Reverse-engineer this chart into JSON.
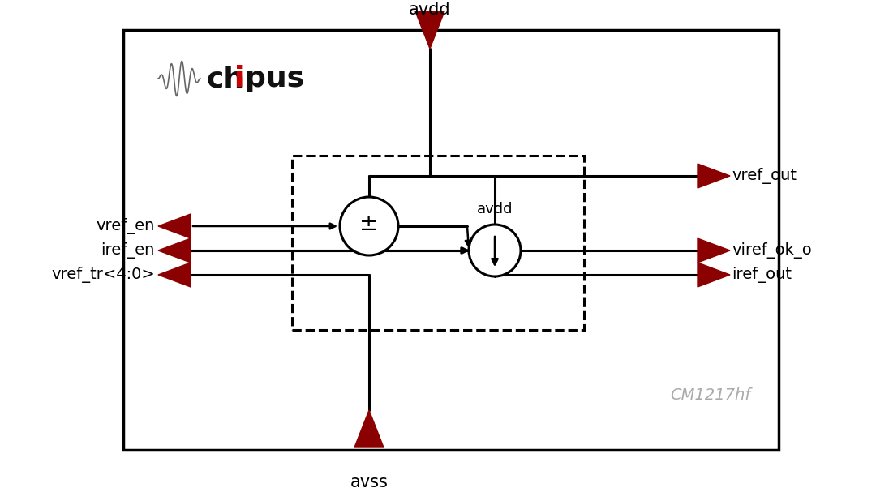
{
  "bg_color": "#ffffff",
  "border_color": "#000000",
  "dark_red": "#8B0000",
  "model_id": "CM1217hf",
  "label_avdd_top": "avdd",
  "label_avss_bot": "avss",
  "label_avdd_inner": "avdd",
  "label_vref_out": "vref_out",
  "label_viref_ok": "viref_ok_o",
  "label_iref_out": "iref_out",
  "label_vref_en": "vref_en",
  "label_iref_en": "iref_en",
  "label_vref_tr": "vref_tr<4:0>",
  "figsize": [
    10.8,
    6.07
  ],
  "dpi": 100
}
